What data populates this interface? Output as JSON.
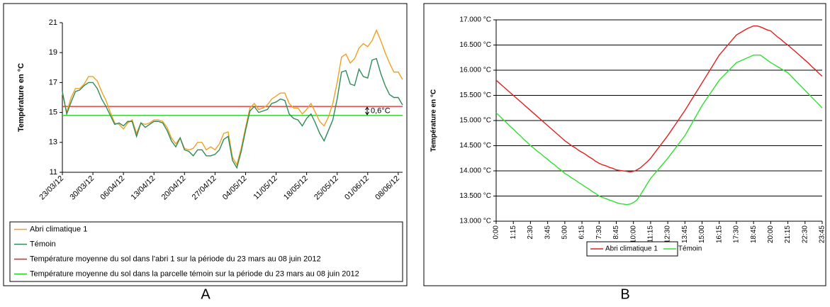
{
  "chart_data": [
    {
      "type": "line",
      "panel_label": "A",
      "y_label": "Température en °C",
      "categories": [
        "23/03/12",
        null,
        null,
        null,
        null,
        null,
        null,
        "30/03/12",
        null,
        null,
        null,
        null,
        null,
        null,
        "06/04/12",
        null,
        null,
        null,
        null,
        null,
        null,
        "13/04/12",
        null,
        null,
        null,
        null,
        null,
        null,
        "20/04/12",
        null,
        null,
        null,
        null,
        null,
        null,
        "27/04/12",
        null,
        null,
        null,
        null,
        null,
        null,
        "04/05/12",
        null,
        null,
        null,
        null,
        null,
        null,
        "11/05/12",
        null,
        null,
        null,
        null,
        null,
        null,
        "18/05/12",
        null,
        null,
        null,
        null,
        null,
        null,
        "25/05/12",
        null,
        null,
        null,
        null,
        null,
        null,
        "01/06/12",
        null,
        null,
        null,
        null,
        null,
        null,
        "08/06/12",
        null
      ],
      "series": [
        {
          "name": "Abri climatique 1",
          "color": "#f0a020",
          "values": [
            16.3,
            15.0,
            16.0,
            16.6,
            16.6,
            16.9,
            17.4,
            17.4,
            17.1,
            16.4,
            15.8,
            15.0,
            14.3,
            14.2,
            13.9,
            14.3,
            14.5,
            13.6,
            14.3,
            14.2,
            14.3,
            14.5,
            14.5,
            14.4,
            14.0,
            13.3,
            12.9,
            13.3,
            12.6,
            12.5,
            12.6,
            13.0,
            13.0,
            12.5,
            12.7,
            12.5,
            12.9,
            13.6,
            13.7,
            12.0,
            11.5,
            12.6,
            14.0,
            15.3,
            15.6,
            15.2,
            15.3,
            15.5,
            15.9,
            16.1,
            16.3,
            16.3,
            15.6,
            15.3,
            15.3,
            14.9,
            15.2,
            15.6,
            15.0,
            14.4,
            14.1,
            14.7,
            15.6,
            17.0,
            18.7,
            18.9,
            18.3,
            18.6,
            19.3,
            19.6,
            19.4,
            19.8,
            20.5,
            19.8,
            19.0,
            18.3,
            17.7,
            17.7,
            17.2
          ]
        },
        {
          "name": "Témoin",
          "color": "#2e8b57",
          "values": [
            16.4,
            14.9,
            15.7,
            16.4,
            16.5,
            16.8,
            17.0,
            17.0,
            16.6,
            15.9,
            15.4,
            14.8,
            14.2,
            14.3,
            14.1,
            14.4,
            14.4,
            13.4,
            14.3,
            14.0,
            14.2,
            14.4,
            14.4,
            14.3,
            13.8,
            13.1,
            12.7,
            13.3,
            12.5,
            12.4,
            12.1,
            12.5,
            12.5,
            12.1,
            12.1,
            12.2,
            12.5,
            13.2,
            13.4,
            11.8,
            11.3,
            12.4,
            13.8,
            15.1,
            15.4,
            15.0,
            15.1,
            15.2,
            15.6,
            15.7,
            15.9,
            15.8,
            14.9,
            14.6,
            14.5,
            14.1,
            14.6,
            14.9,
            14.3,
            13.6,
            13.1,
            13.8,
            14.5,
            15.9,
            17.7,
            17.8,
            16.9,
            16.8,
            17.9,
            17.4,
            17.3,
            18.5,
            18.6,
            17.6,
            16.8,
            16.2,
            16.0,
            16.0,
            15.5
          ]
        }
      ],
      "reference_lines": [
        {
          "name": "Température moyenne du sol dans l'abri 1 sur la période du 23 mars au 08 juin 2012",
          "color": "#e02020",
          "value": 15.4
        },
        {
          "name": "Température moyenne du sol dans la parcelle témoin sur la période du 23 mars au 08 juin 2012",
          "color": "#20d020",
          "value": 14.8
        }
      ],
      "annotation": "0,6°C",
      "ylim": [
        11,
        21
      ],
      "yticks": [
        11,
        13,
        15,
        17,
        19,
        21
      ],
      "grid": false,
      "legend": "bottom"
    },
    {
      "type": "line",
      "panel_label": "B",
      "y_label": "Température en °C",
      "categories": [
        "0:00",
        null,
        null,
        null,
        null,
        "1:15",
        null,
        null,
        null,
        null,
        "2:30",
        null,
        null,
        null,
        null,
        "3:45",
        null,
        null,
        null,
        null,
        "5:00",
        null,
        null,
        null,
        null,
        "6:15",
        null,
        null,
        null,
        null,
        "7:30",
        null,
        null,
        null,
        null,
        "8:45",
        null,
        null,
        null,
        null,
        "10:00",
        null,
        null,
        null,
        null,
        "11:15",
        null,
        null,
        null,
        null,
        "12:30",
        null,
        null,
        null,
        null,
        "13:45",
        null,
        null,
        null,
        null,
        "15:00",
        null,
        null,
        null,
        null,
        "16:15",
        null,
        null,
        null,
        null,
        "17:30",
        null,
        null,
        null,
        null,
        "18:45",
        null,
        null,
        null,
        null,
        "20:00",
        null,
        null,
        null,
        null,
        "21:15",
        null,
        null,
        null,
        null,
        "22:30",
        null,
        null,
        null,
        null,
        "23:45"
      ],
      "series": [
        {
          "name": "Abri climatique 1",
          "color": "#e02020",
          "values": [
            15.8,
            15.74,
            15.68,
            15.62,
            15.56,
            15.5,
            15.44,
            15.38,
            15.32,
            15.26,
            15.2,
            15.14,
            15.08,
            15.02,
            14.96,
            14.9,
            14.84,
            14.78,
            14.72,
            14.66,
            14.6,
            14.55,
            14.5,
            14.46,
            14.41,
            14.37,
            14.33,
            14.28,
            14.24,
            14.19,
            14.15,
            14.12,
            14.1,
            14.07,
            14.05,
            14.02,
            14.01,
            14.0,
            13.99,
            13.98,
            13.99,
            14.02,
            14.06,
            14.12,
            14.18,
            14.25,
            14.34,
            14.43,
            14.52,
            14.61,
            14.7,
            14.8,
            14.9,
            15.0,
            15.1,
            15.2,
            15.31,
            15.42,
            15.53,
            15.64,
            15.75,
            15.86,
            15.97,
            16.08,
            16.19,
            16.3,
            16.38,
            16.46,
            16.54,
            16.62,
            16.7,
            16.74,
            16.78,
            16.82,
            16.85,
            16.88,
            16.88,
            16.86,
            16.83,
            16.8,
            16.78,
            16.72,
            16.66,
            16.61,
            16.55,
            16.5,
            16.44,
            16.38,
            16.32,
            16.26,
            16.2,
            16.14,
            16.07,
            16.01,
            15.94,
            15.88
          ]
        },
        {
          "name": "Témoin",
          "color": "#30e030",
          "values": [
            15.15,
            15.09,
            15.02,
            14.96,
            14.89,
            14.83,
            14.76,
            14.7,
            14.63,
            14.57,
            14.5,
            14.45,
            14.39,
            14.34,
            14.28,
            14.23,
            14.17,
            14.12,
            14.06,
            14.01,
            13.95,
            13.91,
            13.86,
            13.82,
            13.77,
            13.73,
            13.68,
            13.64,
            13.59,
            13.55,
            13.5,
            13.47,
            13.45,
            13.42,
            13.4,
            13.37,
            13.35,
            13.34,
            13.33,
            13.34,
            13.37,
            13.42,
            13.52,
            13.63,
            13.74,
            13.85,
            13.93,
            14.01,
            14.09,
            14.17,
            14.25,
            14.34,
            14.43,
            14.52,
            14.61,
            14.7,
            14.82,
            14.94,
            15.06,
            15.18,
            15.3,
            15.4,
            15.5,
            15.6,
            15.7,
            15.8,
            15.87,
            15.94,
            16.01,
            16.08,
            16.15,
            16.18,
            16.21,
            16.24,
            16.27,
            16.3,
            16.3,
            16.3,
            16.25,
            16.2,
            16.15,
            16.11,
            16.07,
            16.03,
            15.99,
            15.95,
            15.88,
            15.81,
            15.74,
            15.67,
            15.6,
            15.53,
            15.46,
            15.39,
            15.32,
            15.25
          ]
        }
      ],
      "ylim": [
        13,
        17
      ],
      "yticks": [
        {
          "value": 13,
          "label": "13.000 °C"
        },
        {
          "value": 13.5,
          "label": "13.500 °C"
        },
        {
          "value": 14,
          "label": "14.000 °C"
        },
        {
          "value": 14.5,
          "label": "14.500 °C"
        },
        {
          "value": 15,
          "label": "15.000 °C"
        },
        {
          "value": 15.5,
          "label": "15.500 °C"
        },
        {
          "value": 16,
          "label": "16.000 °C"
        },
        {
          "value": 16.5,
          "label": "16.500 °C"
        },
        {
          "value": 17,
          "label": "17.000 °C"
        }
      ],
      "grid": true,
      "legend": "bottom"
    }
  ]
}
